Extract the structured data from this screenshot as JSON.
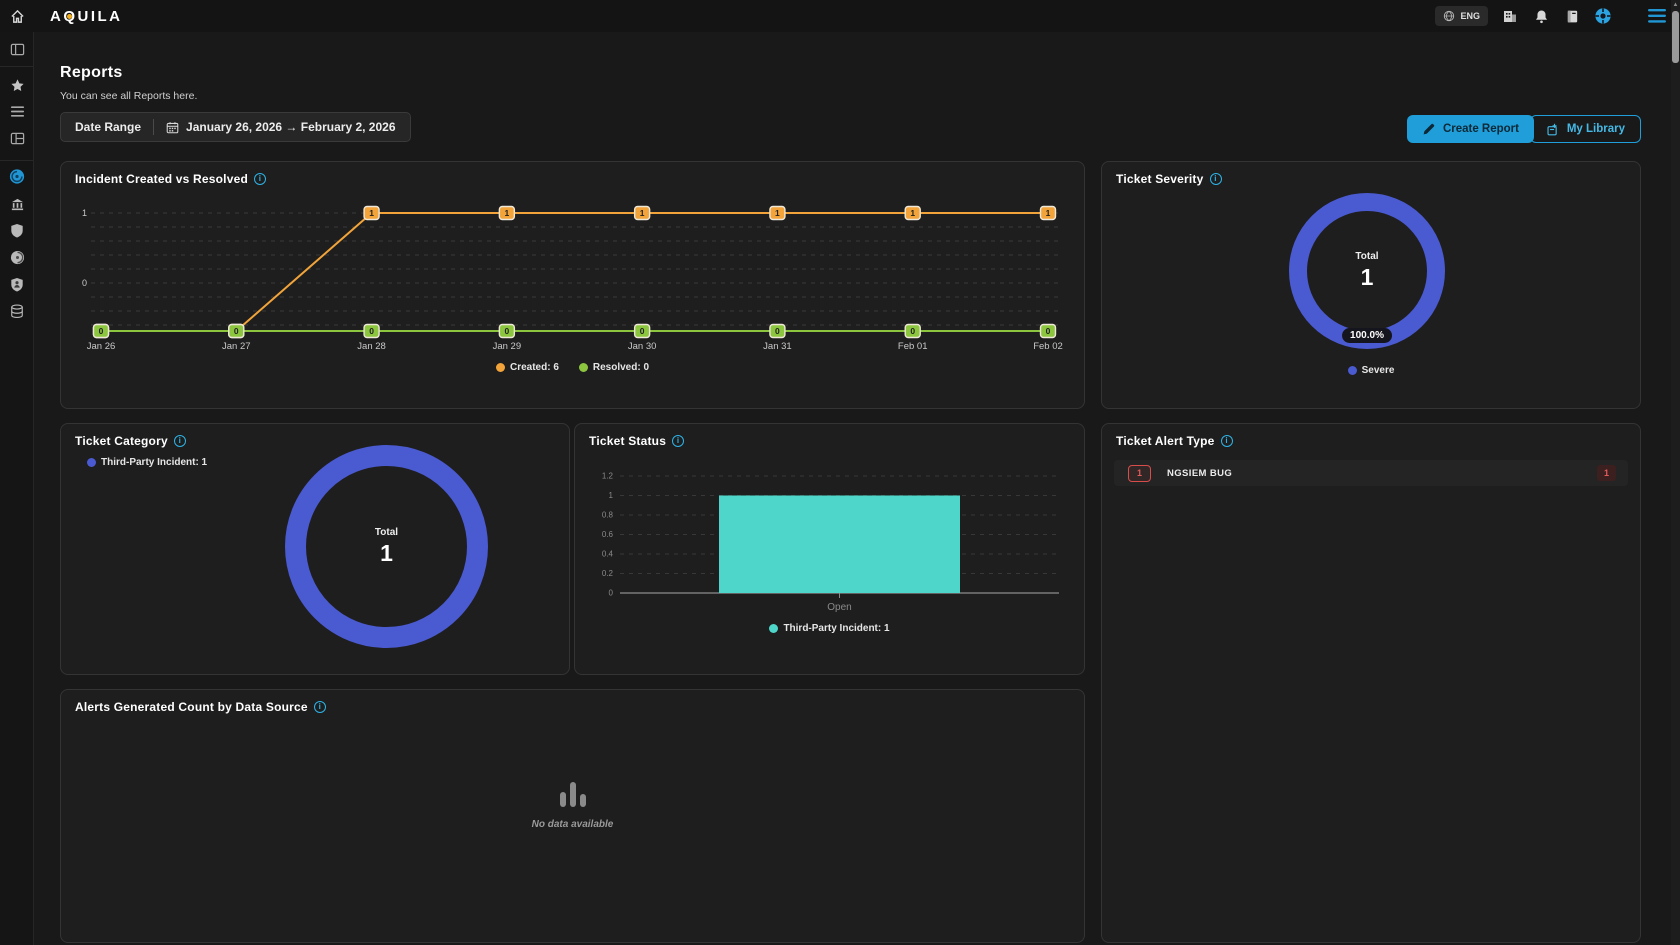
{
  "topbar": {
    "logo": "AQUILA",
    "language": "ENG",
    "icons": [
      "globe-icon",
      "organization-icon",
      "bell-icon",
      "book-icon",
      "support-icon",
      "menu-icon"
    ],
    "accent_color": "#1f9ed9"
  },
  "sidebar": {
    "icons": [
      "home-icon",
      "panel-left-icon",
      "star-icon",
      "list-icon",
      "layout-grid-icon",
      "dashboard-compass-icon",
      "bank-icon",
      "shield-icon",
      "disc-icon",
      "guard-badge-icon",
      "database-icon"
    ],
    "active_icon": "dashboard-compass-icon"
  },
  "page": {
    "title": "Reports",
    "subtitle": "You can see all Reports here.",
    "date_range": {
      "label": "Date Range",
      "value": "January 26, 2026 → February 2, 2026"
    },
    "actions": {
      "create_report": "Create Report",
      "my_library": "My Library"
    }
  },
  "chart_data": [
    {
      "id": "incident-created-vs-resolved",
      "type": "line",
      "title": "Incident Created vs Resolved",
      "x": [
        "Jan 26",
        "Jan 27",
        "Jan 28",
        "Jan 29",
        "Jan 30",
        "Jan 31",
        "Feb 01",
        "Feb 02"
      ],
      "ylim": [
        0,
        1
      ],
      "yticks": [
        1,
        0
      ],
      "grid": "dashed",
      "series": [
        {
          "name": "Created",
          "total": 6,
          "color": "#f2a43a",
          "values": [
            0,
            0,
            1,
            1,
            1,
            1,
            1,
            1
          ]
        },
        {
          "name": "Resolved",
          "total": 0,
          "color": "#8cc63f",
          "values": [
            0,
            0,
            0,
            0,
            0,
            0,
            0,
            0
          ]
        }
      ],
      "legend": [
        {
          "label": "Created: 6",
          "color": "#f2a43a"
        },
        {
          "label": "Resolved: 0",
          "color": "#8cc63f"
        }
      ]
    },
    {
      "id": "ticket-severity",
      "type": "pie",
      "title": "Ticket Severity",
      "labels": [
        "Severe"
      ],
      "values": [
        1
      ],
      "colors": [
        "#4a5ad0"
      ],
      "center_label": "Total",
      "center_value": "1",
      "slice_label": "100.0%",
      "legend": [
        {
          "label": "Severe",
          "color": "#4a5ad0"
        }
      ]
    },
    {
      "id": "ticket-category",
      "type": "pie",
      "title": "Ticket Category",
      "labels": [
        "Third-Party Incident"
      ],
      "values": [
        1
      ],
      "colors": [
        "#4a5ad0"
      ],
      "center_label": "Total",
      "center_value": "1",
      "legend": [
        {
          "label": "Third-Party Incident: 1",
          "color": "#4a5ad0"
        }
      ]
    },
    {
      "id": "ticket-status",
      "type": "bar",
      "title": "Ticket Status",
      "categories": [
        "Open"
      ],
      "ylim": [
        0,
        1.2
      ],
      "yticks": [
        1.2,
        1,
        0.8,
        0.6,
        0.4,
        0.2,
        0
      ],
      "series": [
        {
          "name": "Third-Party Incident",
          "color": "#4fd6cb",
          "values": [
            1
          ]
        }
      ],
      "legend": [
        {
          "label": "Third-Party Incident: 1",
          "color": "#4fd6cb"
        }
      ]
    },
    {
      "id": "ticket-alert-type",
      "type": "table",
      "title": "Ticket Alert Type",
      "rows": [
        {
          "count": "1",
          "label": "NGSIEM BUG",
          "value": "1"
        }
      ]
    },
    {
      "id": "alerts-generated-count-by-data-source",
      "type": "bar",
      "title": "Alerts Generated Count by Data Source",
      "categories": [],
      "series": [],
      "empty_text": "No data available"
    }
  ]
}
